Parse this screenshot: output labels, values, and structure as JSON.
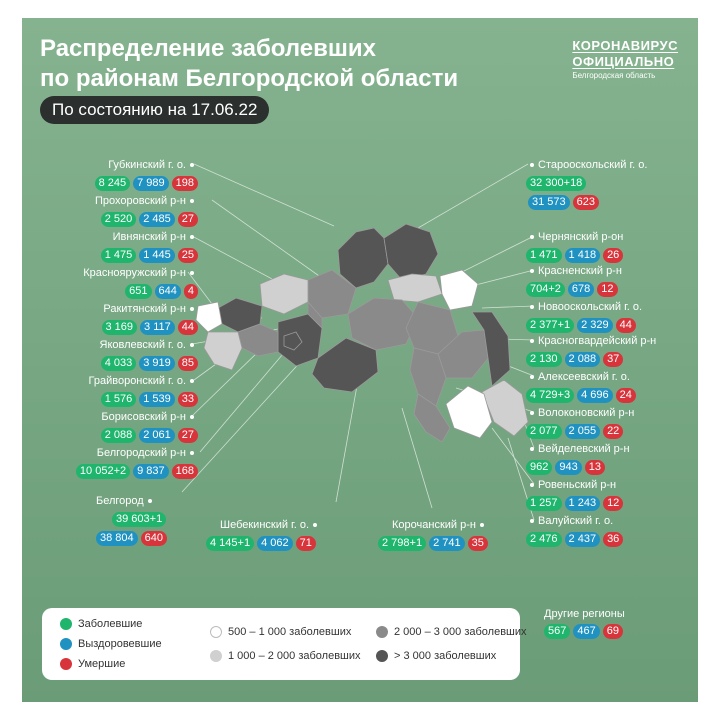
{
  "header": {
    "title_line1": "Распределение заболевших",
    "title_line2": "по районам Белгородской области",
    "date": "По состоянию на 17.06.22"
  },
  "brand": {
    "line1": "КОРОНАВИРУС",
    "line2": "ОФИЦИАЛЬНО",
    "line3": "Белгородская область"
  },
  "left_districts": [
    {
      "name": "Губкинский г. о.",
      "sick": "8 245",
      "recovered": "7 989",
      "dead": "198"
    },
    {
      "name": "Прохоровский р-н",
      "sick": "2 520",
      "recovered": "2 485",
      "dead": "27"
    },
    {
      "name": "Ивнянский р-н",
      "sick": "1 475",
      "recovered": "1 445",
      "dead": "25"
    },
    {
      "name": "Краснояружский р-н",
      "sick": "651",
      "recovered": "644",
      "dead": "4"
    },
    {
      "name": "Ракитянский р-н",
      "sick": "3 169",
      "recovered": "3 117",
      "dead": "44"
    },
    {
      "name": "Яковлевский г. о.",
      "sick": "4 033",
      "recovered": "3 919",
      "dead": "85"
    },
    {
      "name": "Грайворонский г. о.",
      "sick": "1 576",
      "recovered": "1 539",
      "dead": "33"
    },
    {
      "name": "Борисовский р-н",
      "sick": "2 088",
      "recovered": "2 061",
      "dead": "27"
    },
    {
      "name": "Белгородский р-н",
      "sick": "10 052+2",
      "recovered": "9 837",
      "dead": "168"
    }
  ],
  "belgorod": {
    "name": "Белгород",
    "sick": "39 603+1",
    "recovered": "38 804",
    "dead": "640"
  },
  "right_districts": [
    {
      "name": "Старооскольский г. о.",
      "sick": "32 300+18",
      "recovered": "31 573",
      "dead": "623"
    },
    {
      "name": "Чернянский р-он",
      "sick": "1 471",
      "recovered": "1 418",
      "dead": "26"
    },
    {
      "name": "Красненский р-н",
      "sick": "704+2",
      "recovered": "678",
      "dead": "12"
    },
    {
      "name": "Новооскольский г. о.",
      "sick": "2 377+1",
      "recovered": "2 329",
      "dead": "44"
    },
    {
      "name": "Красногвардейский р-н",
      "sick": "2 130",
      "recovered": "2 088",
      "dead": "37"
    },
    {
      "name": "Алексеевский г. о.",
      "sick": "4 729+3",
      "recovered": "4 696",
      "dead": "24"
    },
    {
      "name": "Волоконовский р-н",
      "sick": "2 077",
      "recovered": "2 055",
      "dead": "22"
    },
    {
      "name": "Вейделевский р-н",
      "sick": "962",
      "recovered": "943",
      "dead": "13"
    },
    {
      "name": "Ровеньский р-н",
      "sick": "1 257",
      "recovered": "1 243",
      "dead": "12"
    },
    {
      "name": "Валуйский г. о.",
      "sick": "2 476",
      "recovered": "2 437",
      "dead": "36"
    }
  ],
  "bottom_districts": [
    {
      "name": "Шебекинский г. о.",
      "sick": "4 145+1",
      "recovered": "4 062",
      "dead": "71"
    },
    {
      "name": "Корочанский р-н",
      "sick": "2 798+1",
      "recovered": "2 741",
      "dead": "35"
    }
  ],
  "other_regions": {
    "name": "Другие регионы",
    "sick": "567",
    "recovered": "467",
    "dead": "69"
  },
  "legend": {
    "sick": "Заболевшие",
    "recovered": "Выздоровевшие",
    "dead": "Умершие",
    "r1": "500 – 1 000 заболевших",
    "r2": "1 000 – 2 000 заболевших",
    "r3": "2 000 – 3 000 заболевших",
    "r4": "> 3 000 заболевших"
  },
  "colors": {
    "sick": "#1fb56c",
    "recovered": "#1f92c1",
    "dead": "#d7353b",
    "level1": "#ffffff",
    "level2": "#d0d0d0",
    "level3": "#8a8a8a",
    "level4": "#555555"
  }
}
